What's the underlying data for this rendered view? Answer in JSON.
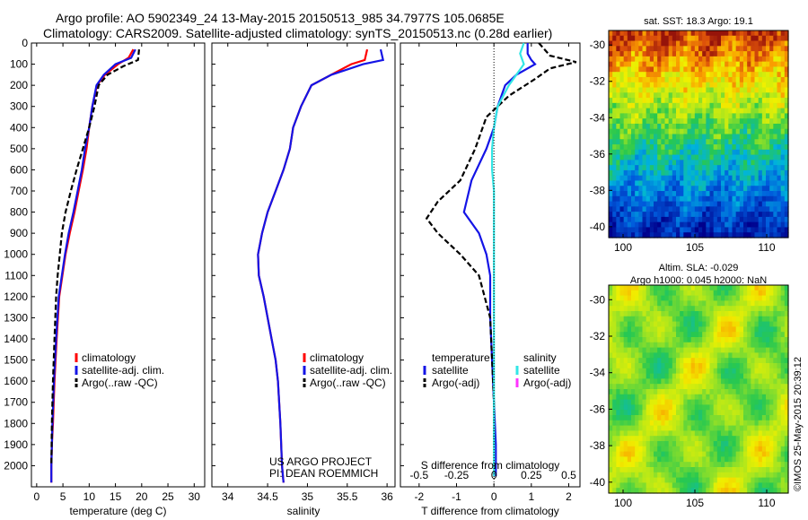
{
  "header": {
    "line1": "Argo profile: AO 5902349_24 13-May-2015 20150513_985 34.7977S 105.0685E",
    "line2": "Climatology: CARS2009. Satellite-adjusted climatology: synTS_20150513.nc (0.28d earlier)"
  },
  "colors": {
    "red": "#ff0000",
    "blue": "#1414e6",
    "black": "#000000",
    "cyan": "#33e6e6",
    "magenta": "#ff33ff"
  },
  "chart_data": [
    {
      "type": "line",
      "xlabel": "temperature (deg C)",
      "ylim": [
        2100,
        0
      ],
      "xlim": [
        -1,
        32
      ],
      "xticks": [
        0,
        5,
        10,
        15,
        20,
        25,
        30
      ],
      "yticks": [
        0,
        100,
        200,
        300,
        400,
        500,
        600,
        700,
        800,
        900,
        1000,
        1100,
        1200,
        1300,
        1400,
        1500,
        1600,
        1700,
        1800,
        1900,
        2000
      ],
      "legend": [
        "climatology",
        "satellite-adj. clim.",
        "Argo(..raw -QC)"
      ],
      "series": [
        {
          "name": "climatology",
          "color": "red",
          "dash": false,
          "x": [
            18.4,
            17.5,
            15.5,
            13.0,
            11.5,
            10.6,
            10.0,
            9.5,
            8.8,
            8.0,
            7.2,
            6.3,
            5.5,
            4.9,
            4.3,
            3.8,
            3.4,
            3.1,
            2.9,
            2.8,
            2.8
          ],
          "y": [
            30,
            70,
            100,
            150,
            200,
            300,
            400,
            500,
            600,
            700,
            800,
            900,
            1000,
            1100,
            1200,
            1400,
            1600,
            1800,
            1900,
            2000,
            2080
          ]
        },
        {
          "name": "satellite-adj. clim.",
          "color": "blue",
          "dash": false,
          "x": [
            18.8,
            18.0,
            15.0,
            12.8,
            11.4,
            10.6,
            10.0,
            9.2,
            8.6,
            7.8,
            7.0,
            6.1,
            5.4,
            4.8,
            4.2,
            3.7,
            3.3,
            3.0,
            2.8,
            2.8
          ],
          "y": [
            30,
            70,
            100,
            150,
            200,
            300,
            400,
            500,
            600,
            700,
            800,
            900,
            1000,
            1100,
            1200,
            1400,
            1600,
            1800,
            2000,
            2080
          ]
        },
        {
          "name": "Argo(..raw -QC)",
          "color": "black",
          "dash": true,
          "x": [
            19.5,
            19.3,
            16.5,
            13.5,
            11.8,
            11.0,
            10.0,
            8.8,
            7.6,
            6.5,
            5.5,
            4.8,
            4.4,
            4.0,
            3.7,
            3.4,
            3.1,
            2.9,
            2.8
          ],
          "y": [
            30,
            80,
            110,
            150,
            200,
            300,
            400,
            500,
            600,
            700,
            800,
            900,
            1000,
            1100,
            1200,
            1400,
            1600,
            1800,
            2000
          ]
        }
      ]
    },
    {
      "type": "line",
      "xlabel": "salinity",
      "ylim": [
        2100,
        0
      ],
      "xlim": [
        33.8,
        36.1
      ],
      "xticks": [
        34,
        34.5,
        35,
        35.5,
        36
      ],
      "xticklabels": [
        "34",
        "34.5",
        "35",
        "35.5",
        "36"
      ],
      "legend": [
        "climatology",
        "satellite-adj. clim.",
        "Argo(..raw -QC)"
      ],
      "annotation": [
        "US ARGO PROJECT",
        "PI: DEAN ROEMMICH"
      ],
      "series": [
        {
          "name": "climatology",
          "color": "red",
          "dash": false,
          "x": [
            35.75,
            35.72,
            35.55,
            35.3,
            35.05,
            34.92,
            34.82,
            34.78,
            34.7,
            34.6,
            34.5,
            34.43,
            34.38,
            34.39,
            34.45,
            34.5,
            34.55,
            34.6,
            34.63,
            34.66,
            34.68,
            34.7
          ],
          "y": [
            30,
            80,
            100,
            150,
            200,
            300,
            400,
            500,
            600,
            700,
            800,
            900,
            1000,
            1100,
            1200,
            1300,
            1400,
            1500,
            1600,
            1800,
            2000,
            2080
          ]
        },
        {
          "name": "satellite-adj. clim.",
          "color": "blue",
          "dash": false,
          "x": [
            35.92,
            35.95,
            35.7,
            35.3,
            35.05,
            34.92,
            34.82,
            34.78,
            34.7,
            34.6,
            34.5,
            34.43,
            34.38,
            34.39,
            34.45,
            34.5,
            34.55,
            34.6,
            34.63,
            34.66,
            34.68,
            34.7
          ],
          "y": [
            30,
            80,
            100,
            150,
            200,
            300,
            400,
            500,
            600,
            700,
            800,
            900,
            1000,
            1100,
            1200,
            1300,
            1400,
            1500,
            1600,
            1800,
            2000,
            2080
          ]
        }
      ]
    },
    {
      "type": "line",
      "xlabel": "T difference from climatology",
      "xlabel2": "S difference from climatology",
      "ylim": [
        2100,
        0
      ],
      "xlim": [
        -2.5,
        2.3
      ],
      "xticks": [
        -2,
        -1,
        0,
        1,
        2
      ],
      "top_ticklabels": [
        "-0.5",
        "-0.25",
        "0",
        "0.25",
        "0.5"
      ],
      "top_tickvalues": [
        -2,
        -1,
        0,
        1,
        2
      ],
      "legend_temperature": [
        "temperature",
        "satellite",
        "Argo(-adj)"
      ],
      "legend_salinity": [
        "salinity",
        "satellite",
        "Argo(-adj)"
      ],
      "series": [
        {
          "name": "satellite",
          "color": "blue",
          "dash": false,
          "x": [
            0.9,
            0.9,
            1.0,
            1.1,
            0.6,
            0.3,
            0.1,
            0.0,
            -0.2,
            -0.6,
            -0.8,
            -0.4,
            -0.2,
            -0.1,
            -0.1,
            -0.05,
            0,
            0.05,
            0.05,
            0.05
          ],
          "y": [
            0,
            50,
            80,
            100,
            150,
            200,
            300,
            400,
            500,
            650,
            800,
            900,
            1000,
            1100,
            1300,
            1500,
            1700,
            1900,
            2000,
            2050
          ]
        },
        {
          "name": "Argo(-adj)",
          "color": "black",
          "dash": true,
          "x": [
            1.2,
            1.5,
            2.2,
            1.5,
            1.1,
            0.4,
            -0.2,
            -0.5,
            -0.9,
            -1.5,
            -1.8,
            -1.5,
            -0.9,
            -0.4,
            -0.1,
            -0.05,
            0,
            0
          ],
          "y": [
            0,
            60,
            90,
            120,
            170,
            250,
            350,
            500,
            650,
            750,
            830,
            900,
            1000,
            1100,
            1300,
            1500,
            1700,
            1900
          ]
        },
        {
          "name": "satellite",
          "color": "cyan",
          "dash": false,
          "x": [
            0.8,
            0.7,
            0.8,
            0.6,
            0.4,
            0.1,
            0,
            -0.05,
            -0.05,
            0,
            0,
            0,
            0,
            0,
            0,
            0
          ],
          "y": [
            0,
            50,
            100,
            150,
            200,
            300,
            400,
            500,
            600,
            700,
            800,
            1000,
            1200,
            1500,
            1800,
            2050
          ]
        }
      ]
    },
    {
      "type": "heatmap",
      "title": "sat. SST: 18.3 Argo: 19.1",
      "xticks": [
        100,
        105,
        110
      ],
      "yticks": [
        -30,
        -32,
        -34,
        -36,
        -38,
        -40
      ]
    },
    {
      "type": "heatmap",
      "title": "Altim. SLA: -0.029",
      "subtitle": "Argo h1000: 0.045 h2000: NaN",
      "side_label": "©IMOS 25-May-2015 20:39:12",
      "xticks": [
        100,
        105,
        110
      ],
      "yticks": [
        -30,
        -32,
        -34,
        -36,
        -38,
        -40
      ]
    }
  ]
}
